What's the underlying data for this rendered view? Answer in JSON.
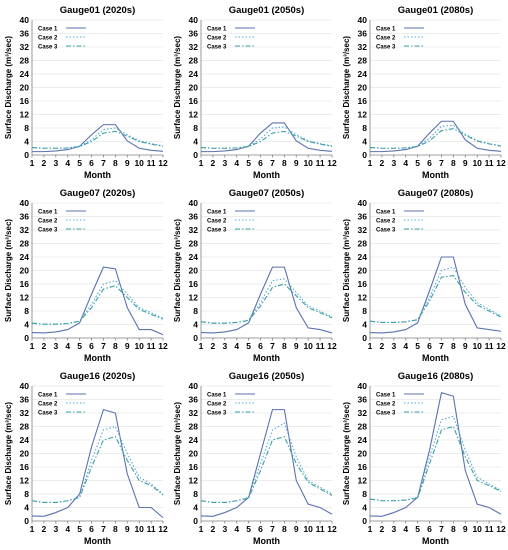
{
  "chart_data": [
    {
      "type": "line",
      "title": "Gauge01 (2020s)",
      "xlabel": "Month",
      "ylabel": "Surface Discharge (m³/sec)",
      "ylim": [
        0,
        40
      ],
      "yticks": [
        0,
        4,
        8,
        12,
        16,
        20,
        24,
        28,
        32,
        36,
        40
      ],
      "x": [
        1,
        2,
        3,
        4,
        5,
        6,
        7,
        8,
        9,
        10,
        11,
        12
      ],
      "legend_position": "top-left",
      "series": [
        {
          "name": "Case 1",
          "style": "solid",
          "values": [
            1,
            1,
            1.2,
            1.6,
            2.6,
            6,
            9,
            9,
            4.2,
            2,
            1.4,
            1.1
          ]
        },
        {
          "name": "Case 2",
          "style": "dotted",
          "values": [
            2.2,
            2,
            2,
            2.1,
            2.6,
            4.5,
            7.5,
            8,
            6,
            4.2,
            3.4,
            2.7
          ]
        },
        {
          "name": "Case 3",
          "style": "dashdot",
          "values": [
            2.2,
            2,
            2,
            2.1,
            2.5,
            4,
            6.5,
            7,
            5.6,
            4,
            3.2,
            2.6
          ]
        }
      ]
    },
    {
      "type": "line",
      "title": "Gauge01 (2050s)",
      "xlabel": "Month",
      "ylabel": "Surface Discharge (m³/sec)",
      "ylim": [
        0,
        40
      ],
      "yticks": [
        0,
        4,
        8,
        12,
        16,
        20,
        24,
        28,
        32,
        36,
        40
      ],
      "x": [
        1,
        2,
        3,
        4,
        5,
        6,
        7,
        8,
        9,
        10,
        11,
        12
      ],
      "legend_position": "top-left",
      "series": [
        {
          "name": "Case 1",
          "style": "solid",
          "values": [
            1,
            1,
            1.2,
            1.6,
            2.6,
            6.5,
            9.5,
            9.5,
            4.2,
            2,
            1.4,
            1.1
          ]
        },
        {
          "name": "Case 2",
          "style": "dotted",
          "values": [
            2.2,
            2,
            2,
            2.1,
            2.6,
            4.8,
            8,
            8.3,
            6,
            4.2,
            3.4,
            2.7
          ]
        },
        {
          "name": "Case 3",
          "style": "dashdot",
          "values": [
            2.2,
            2,
            2,
            2.1,
            2.5,
            4,
            6.5,
            7,
            5.6,
            4,
            3.2,
            2.6
          ]
        }
      ]
    },
    {
      "type": "line",
      "title": "Gauge01 (2080s)",
      "xlabel": "Month",
      "ylabel": "Surface Discharge (m³/sec)",
      "ylim": [
        0,
        40
      ],
      "yticks": [
        0,
        4,
        8,
        12,
        16,
        20,
        24,
        28,
        32,
        36,
        40
      ],
      "x": [
        1,
        2,
        3,
        4,
        5,
        6,
        7,
        8,
        9,
        10,
        11,
        12
      ],
      "legend_position": "top-left",
      "series": [
        {
          "name": "Case 1",
          "style": "solid",
          "values": [
            1,
            1,
            1.2,
            1.6,
            2.6,
            6.5,
            10,
            10,
            4.5,
            2,
            1.4,
            1.1
          ]
        },
        {
          "name": "Case 2",
          "style": "dotted",
          "values": [
            2.2,
            2,
            2,
            2.1,
            2.6,
            5,
            8.5,
            8.8,
            6.2,
            4.3,
            3.4,
            2.7
          ]
        },
        {
          "name": "Case 3",
          "style": "dashdot",
          "values": [
            2.2,
            2,
            2,
            2.1,
            2.5,
            4.2,
            7.2,
            7.8,
            5.9,
            4.1,
            3.3,
            2.6
          ]
        }
      ]
    },
    {
      "type": "line",
      "title": "Gauge07 (2020s)",
      "xlabel": "Month",
      "ylabel": "Surface Discharge (m³/sec)",
      "ylim": [
        0,
        40
      ],
      "yticks": [
        0,
        4,
        8,
        12,
        16,
        20,
        24,
        28,
        32,
        36,
        40
      ],
      "x": [
        1,
        2,
        3,
        4,
        5,
        6,
        7,
        8,
        9,
        10,
        11,
        12
      ],
      "legend_position": "top-left",
      "series": [
        {
          "name": "Case 1",
          "style": "solid",
          "values": [
            1.6,
            1.5,
            1.8,
            2.5,
            4.5,
            13,
            21,
            20.5,
            9,
            2.5,
            2.5,
            1
          ]
        },
        {
          "name": "Case 2",
          "style": "dotted",
          "values": [
            4.4,
            4.1,
            4.1,
            4.3,
            5,
            10,
            16,
            17,
            13,
            9,
            7.5,
            5.8
          ]
        },
        {
          "name": "Case 3",
          "style": "dashdot",
          "values": [
            4.4,
            4.1,
            4.1,
            4.3,
            5,
            9,
            14.5,
            15.5,
            12,
            8.5,
            7,
            5.6
          ]
        }
      ]
    },
    {
      "type": "line",
      "title": "Gauge07 (2050s)",
      "xlabel": "Month",
      "ylabel": "Surface Discharge (m³/sec)",
      "ylim": [
        0,
        40
      ],
      "yticks": [
        0,
        4,
        8,
        12,
        16,
        20,
        24,
        28,
        32,
        36,
        40
      ],
      "x": [
        1,
        2,
        3,
        4,
        5,
        6,
        7,
        8,
        9,
        10,
        11,
        12
      ],
      "legend_position": "top-left",
      "series": [
        {
          "name": "Case 1",
          "style": "solid",
          "values": [
            1.6,
            1.5,
            1.8,
            2.5,
            4.5,
            13,
            21,
            21,
            9,
            3,
            2.5,
            1.5
          ]
        },
        {
          "name": "Case 2",
          "style": "dotted",
          "values": [
            4.8,
            4.4,
            4.4,
            4.6,
            5.3,
            10.5,
            17,
            17.5,
            13.5,
            9.5,
            8,
            6.2
          ]
        },
        {
          "name": "Case 3",
          "style": "dashdot",
          "values": [
            4.8,
            4.4,
            4.4,
            4.6,
            5.2,
            9.5,
            15,
            16,
            12.5,
            9,
            7.5,
            6
          ]
        }
      ]
    },
    {
      "type": "line",
      "title": "Gauge07 (2080s)",
      "xlabel": "Month",
      "ylabel": "Surface Discharge (m³/sec)",
      "ylim": [
        0,
        40
      ],
      "yticks": [
        0,
        4,
        8,
        12,
        16,
        20,
        24,
        28,
        32,
        36,
        40
      ],
      "x": [
        1,
        2,
        3,
        4,
        5,
        6,
        7,
        8,
        9,
        10,
        11,
        12
      ],
      "legend_position": "top-left",
      "series": [
        {
          "name": "Case 1",
          "style": "solid",
          "values": [
            1.6,
            1.5,
            1.8,
            2.5,
            4.5,
            14,
            24,
            24,
            10,
            3,
            2.5,
            2
          ]
        },
        {
          "name": "Case 2",
          "style": "dotted",
          "values": [
            5,
            4.6,
            4.6,
            4.8,
            5.5,
            12,
            20,
            21,
            15,
            10.5,
            8.5,
            6.5
          ]
        },
        {
          "name": "Case 3",
          "style": "dashdot",
          "values": [
            5,
            4.6,
            4.6,
            4.8,
            5.4,
            11,
            18,
            18.5,
            13.5,
            9.8,
            8,
            6.2
          ]
        }
      ]
    },
    {
      "type": "line",
      "title": "Gauge16 (2020s)",
      "xlabel": "Month",
      "ylabel": "Surface Discharge (m³/sec)",
      "ylim": [
        0,
        40
      ],
      "yticks": [
        0,
        4,
        8,
        12,
        16,
        20,
        24,
        28,
        32,
        36,
        40
      ],
      "x": [
        1,
        2,
        3,
        4,
        5,
        6,
        7,
        8,
        9,
        10,
        11,
        12
      ],
      "legend_position": "top-left",
      "series": [
        {
          "name": "Case 1",
          "style": "solid",
          "values": [
            1.5,
            1.4,
            2.5,
            4,
            8,
            22,
            33,
            32,
            14,
            4,
            4,
            1
          ]
        },
        {
          "name": "Case 2",
          "style": "dotted",
          "values": [
            6,
            5.5,
            5.5,
            6,
            7,
            18,
            27,
            28,
            20,
            13,
            11,
            8
          ]
        },
        {
          "name": "Case 3",
          "style": "dashdot",
          "values": [
            6,
            5.5,
            5.5,
            6,
            7,
            16,
            24,
            25,
            18,
            12,
            10.5,
            7.8
          ]
        }
      ]
    },
    {
      "type": "line",
      "title": "Gauge16 (2050s)",
      "xlabel": "Month",
      "ylabel": "Surface Discharge (m³/sec)",
      "ylim": [
        0,
        40
      ],
      "yticks": [
        0,
        4,
        8,
        12,
        16,
        20,
        24,
        28,
        32,
        36,
        40
      ],
      "x": [
        1,
        2,
        3,
        4,
        5,
        6,
        7,
        8,
        9,
        10,
        11,
        12
      ],
      "legend_position": "top-left",
      "series": [
        {
          "name": "Case 1",
          "style": "solid",
          "values": [
            1.5,
            1.4,
            2.5,
            4,
            7,
            20,
            33,
            33,
            12,
            5,
            4,
            2
          ]
        },
        {
          "name": "Case 2",
          "style": "dotted",
          "values": [
            6,
            5.5,
            5.5,
            6,
            7,
            17,
            27,
            29,
            19,
            12,
            10,
            8
          ]
        },
        {
          "name": "Case 3",
          "style": "dashdot",
          "values": [
            6,
            5.5,
            5.5,
            6,
            6.8,
            15,
            24,
            25,
            17,
            11.5,
            9.5,
            7.6
          ]
        }
      ]
    },
    {
      "type": "line",
      "title": "Gauge16 (2080s)",
      "xlabel": "Month",
      "ylabel": "Surface Discharge (m³/sec)",
      "ylim": [
        0,
        40
      ],
      "yticks": [
        0,
        4,
        8,
        12,
        16,
        20,
        24,
        28,
        32,
        36,
        40
      ],
      "x": [
        1,
        2,
        3,
        4,
        5,
        6,
        7,
        8,
        9,
        10,
        11,
        12
      ],
      "legend_position": "top-left",
      "series": [
        {
          "name": "Case 1",
          "style": "solid",
          "values": [
            1.5,
            1.4,
            2.5,
            4,
            7,
            21,
            38,
            37,
            15,
            5,
            4,
            2
          ]
        },
        {
          "name": "Case 2",
          "style": "dotted",
          "values": [
            6.5,
            6,
            6,
            6.2,
            7,
            19,
            30,
            31,
            21,
            13,
            11,
            9
          ]
        },
        {
          "name": "Case 3",
          "style": "dashdot",
          "values": [
            6.5,
            6,
            6,
            6.2,
            6.8,
            17,
            27,
            28,
            19,
            12,
            10.5,
            8.8
          ]
        }
      ]
    }
  ],
  "colors": {
    "Case 1": "#5b72b0",
    "Case 2": "#5aa9d6",
    "Case 3": "#3aa0a4",
    "axis": "#7f7f7f",
    "grid": "#d9d9d9",
    "text": "#000000"
  }
}
